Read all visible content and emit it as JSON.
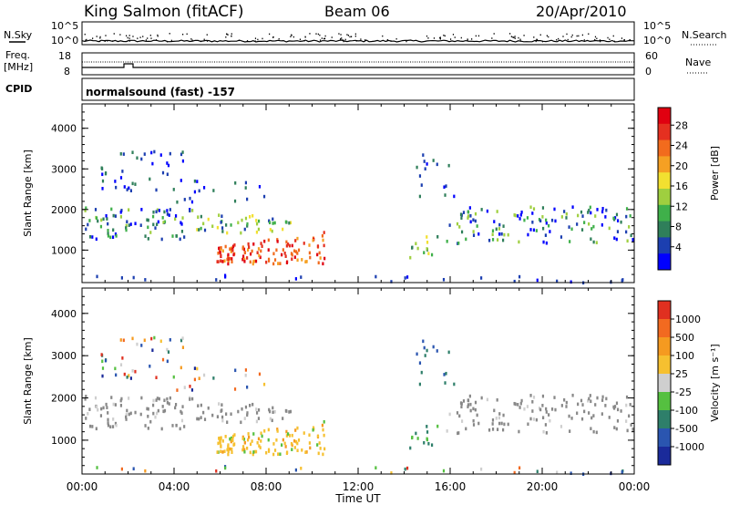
{
  "header": {
    "station": "King Salmon (fitACF)",
    "beam": "Beam 06",
    "date": "20/Apr/2010"
  },
  "top_panel": {
    "left_label": "N.Sky",
    "right_label": "N.Search",
    "ticks": [
      "10^5",
      "10^0"
    ]
  },
  "freq_panel": {
    "left_label_1": "Freq.",
    "left_label_2": "[MHz]",
    "right_label": "Nave",
    "left_ticks": [
      "18",
      "8"
    ],
    "right_ticks": [
      "60",
      "0"
    ]
  },
  "cpid": {
    "label": "CPID",
    "text": "normalsound (fast) -157"
  },
  "chart_data": [
    {
      "type": "heatmap",
      "title": "",
      "quantity": "Power",
      "xlabel": "Time UT",
      "ylabel": "Slant Range [km]",
      "x_ticks": [
        "00:00",
        "04:00",
        "08:00",
        "12:00",
        "16:00",
        "20:00",
        "00:00"
      ],
      "y_ticks": [
        1000,
        2000,
        3000,
        4000
      ],
      "ylim": [
        200,
        4600
      ],
      "colorbar": {
        "label": "Power [dB]",
        "ticks": [
          "4",
          "8",
          "12",
          "16",
          "20",
          "24",
          "28"
        ],
        "colors": [
          "#0000ff",
          "#1c3fb0",
          "#2f7f5a",
          "#3fb04a",
          "#9fcf3f",
          "#f2e030",
          "#f5a023",
          "#f26b1d",
          "#e53020",
          "#e00010"
        ]
      }
    },
    {
      "type": "heatmap",
      "title": "",
      "quantity": "Velocity",
      "xlabel": "Time UT",
      "ylabel": "Slant Range [km]",
      "x_ticks": [
        "00:00",
        "04:00",
        "08:00",
        "12:00",
        "16:00",
        "20:00",
        "00:00"
      ],
      "y_ticks": [
        1000,
        2000,
        3000,
        4000
      ],
      "ylim": [
        200,
        4600
      ],
      "colorbar": {
        "label": "Velocity [m s⁻¹]",
        "ticks": [
          "1000",
          "500",
          "100",
          "25",
          "-25",
          "-100",
          "-500",
          "-1000"
        ],
        "colors": [
          "#1a2a9a",
          "#2a55b0",
          "#2e7f6a",
          "#55c040",
          "#cfcfcf",
          "#f6c030",
          "#f59a20",
          "#f26a20",
          "#e03020"
        ]
      }
    }
  ],
  "ground_scatter_color": "#888888"
}
